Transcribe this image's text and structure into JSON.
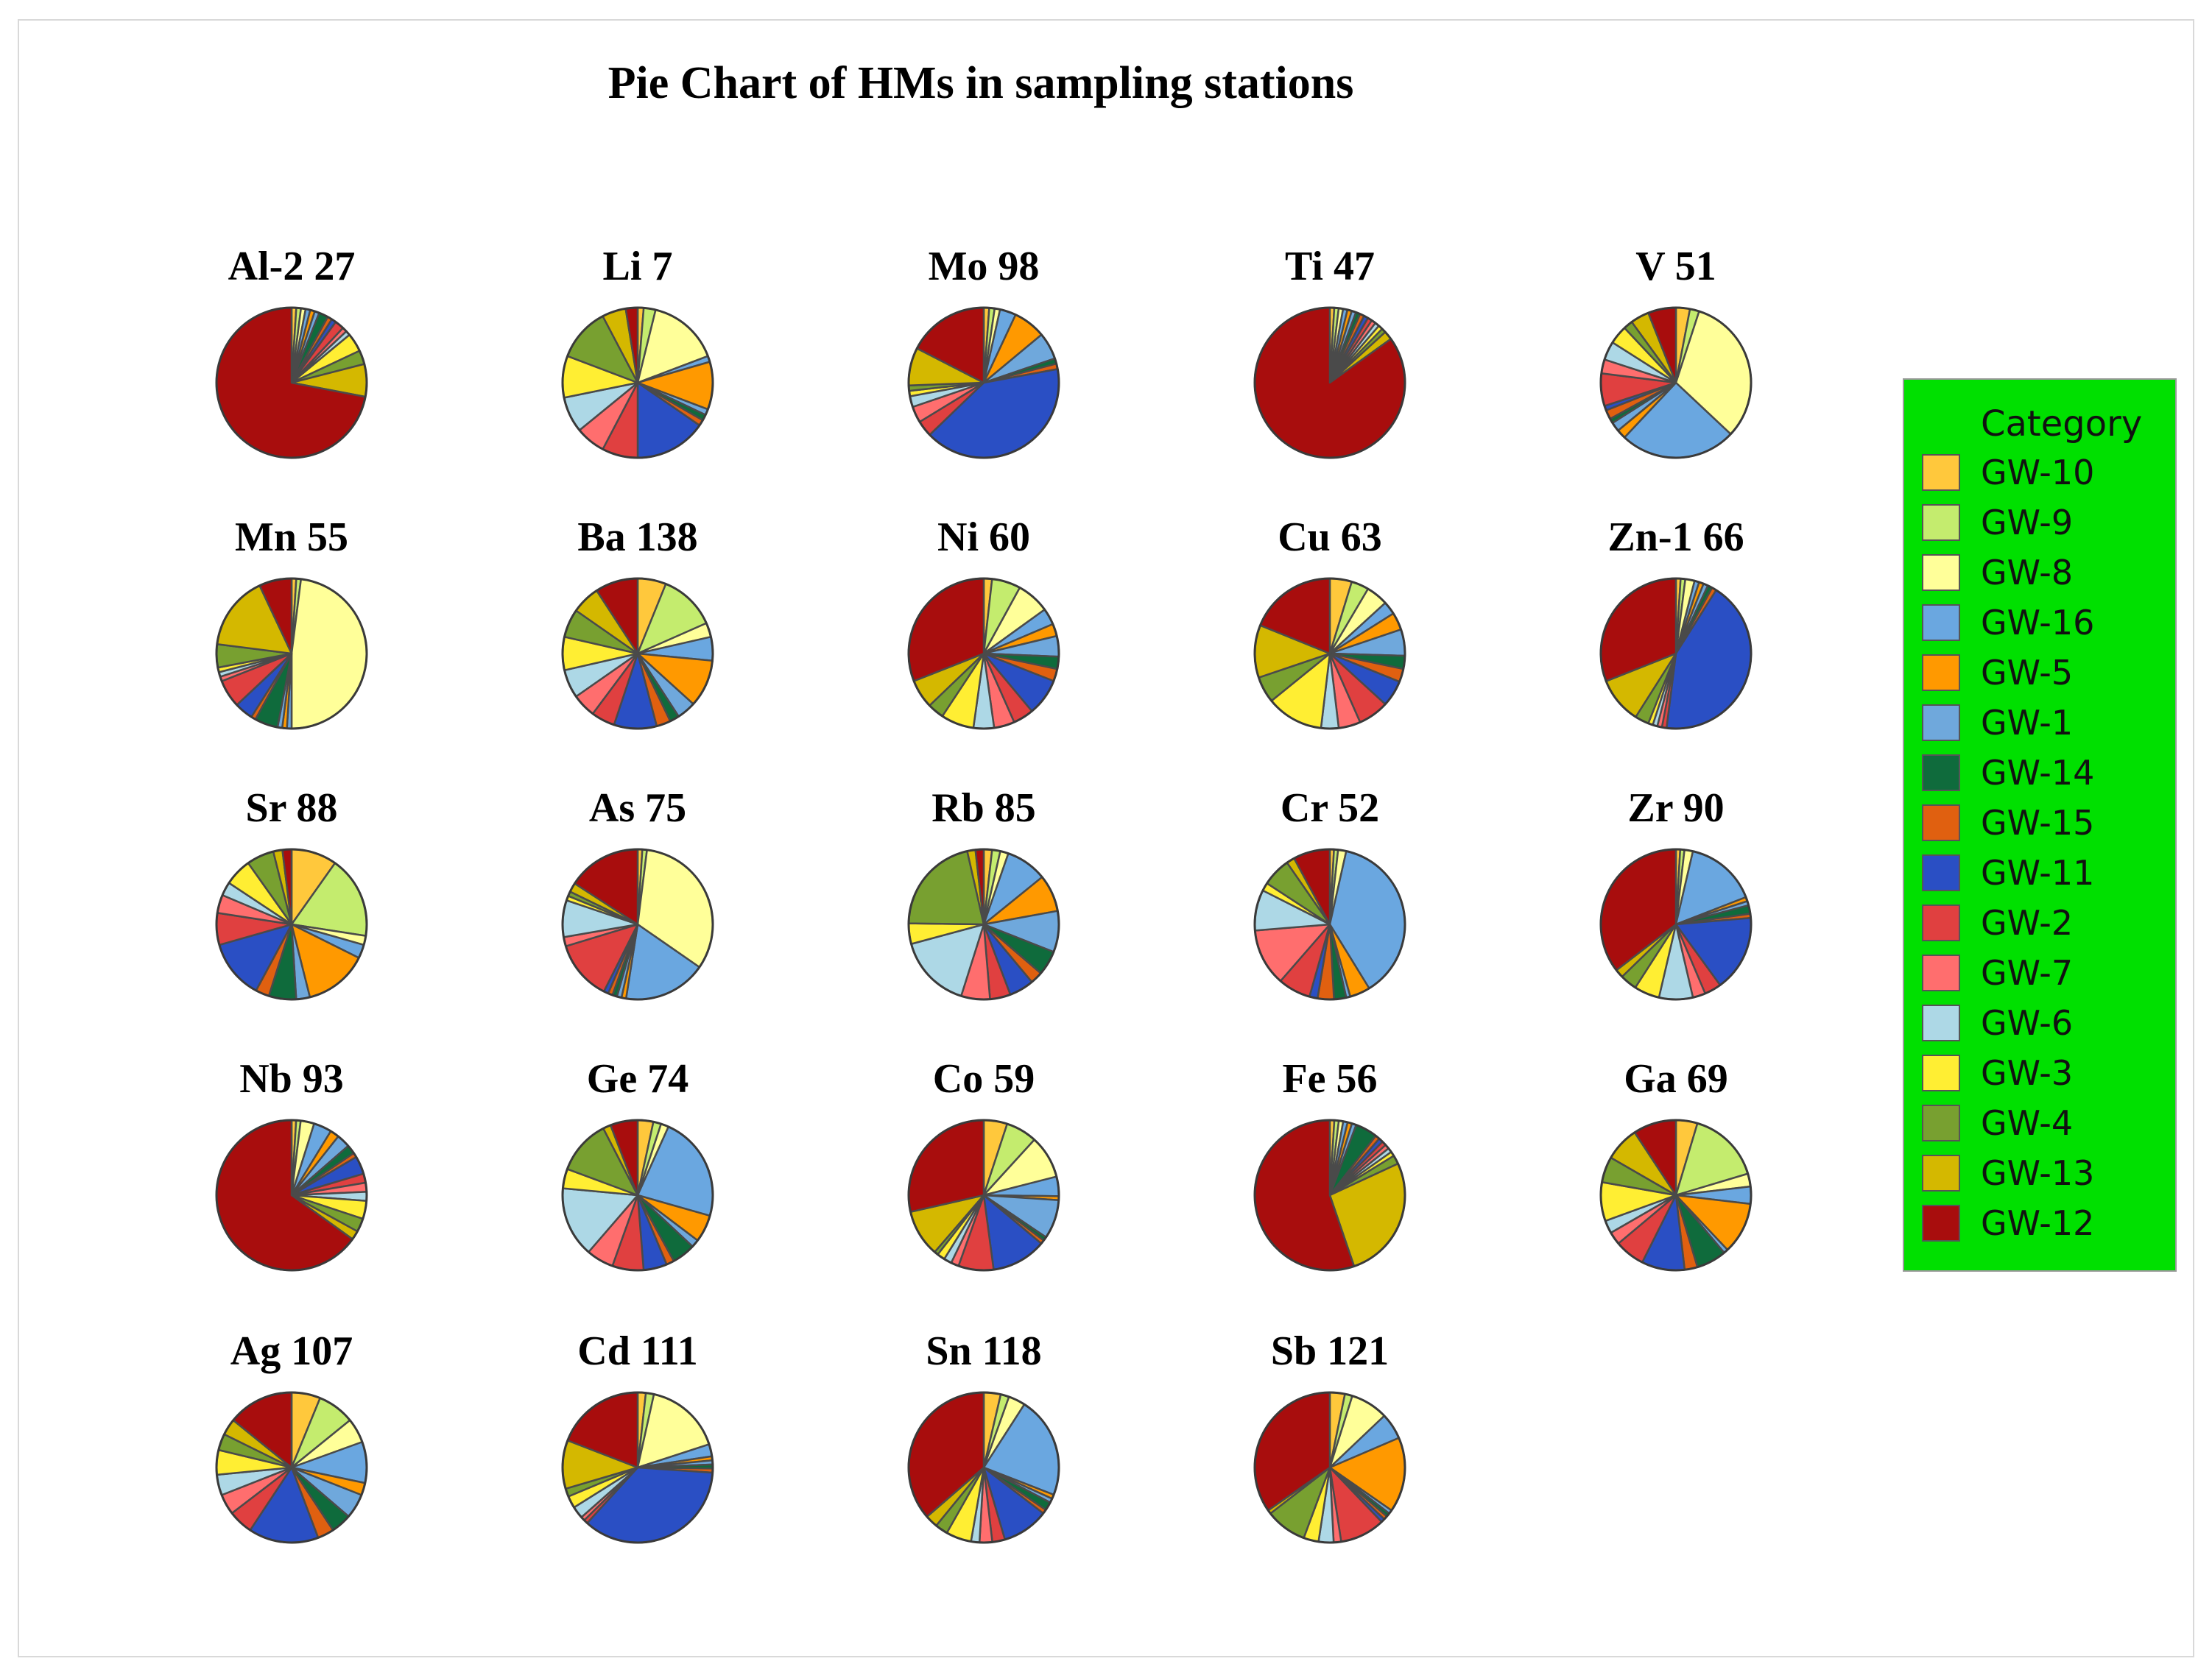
{
  "chart_data": {
    "type": "pie",
    "title": "Pie Chart of HMs in sampling stations",
    "legend_title": "Category",
    "legend_position": "right",
    "categories": [
      "GW-10",
      "GW-9",
      "GW-8",
      "GW-16",
      "GW-5",
      "GW-1",
      "GW-14",
      "GW-15",
      "GW-11",
      "GW-2",
      "GW-7",
      "GW-6",
      "GW-3",
      "GW-4",
      "GW-13",
      "GW-12"
    ],
    "colors": [
      "#ffc83c",
      "#c4ec6e",
      "#ffff99",
      "#6aa7e0",
      "#ff9900",
      "#6fa8dc",
      "#0f6b3c",
      "#e06010",
      "#2a4fc4",
      "#e04040",
      "#ff6e6e",
      "#add8e6",
      "#ffee33",
      "#78a030",
      "#d4b800",
      "#a80d0d"
    ],
    "pies": [
      {
        "title": "Al-2 27",
        "values": [
          1,
          1,
          1,
          1,
          1,
          1,
          2,
          1,
          1,
          2,
          1,
          1,
          4,
          3,
          7,
          72
        ]
      },
      {
        "title": "Li 7",
        "values": [
          1,
          2,
          12,
          1,
          8,
          1,
          1,
          1,
          12,
          6,
          5,
          6,
          7,
          9,
          4,
          2
        ]
      },
      {
        "title": "Mo 98",
        "values": [
          1,
          1,
          1,
          3,
          6,
          5,
          1,
          1,
          35,
          3,
          3,
          2,
          1,
          1,
          7,
          15
        ]
      },
      {
        "title": "Ti 47",
        "values": [
          1,
          1,
          1,
          1,
          1,
          1,
          1,
          1,
          1,
          1,
          1,
          1,
          1,
          1,
          2,
          90
        ]
      },
      {
        "title": "V 51",
        "values": [
          3,
          2,
          32,
          25,
          2,
          2,
          1,
          2,
          1,
          7,
          3,
          4,
          4,
          2,
          4,
          6
        ]
      },
      {
        "title": "Mn 55",
        "values": [
          1,
          1,
          48,
          1,
          1,
          1,
          5,
          1,
          4,
          6,
          1,
          1,
          1,
          5,
          16,
          7
        ]
      },
      {
        "title": "Ba 138",
        "values": [
          6,
          12,
          3,
          5,
          10,
          4,
          2,
          3,
          9,
          5,
          5,
          6,
          7,
          6,
          6,
          9
        ]
      },
      {
        "title": "Ni 60",
        "values": [
          2,
          7,
          8,
          4,
          3,
          5,
          3,
          3,
          9,
          5,
          5,
          5,
          8,
          4,
          7,
          35
        ]
      },
      {
        "title": "Cu 63",
        "values": [
          5,
          4,
          5,
          3,
          4,
          6,
          3,
          3,
          6,
          7,
          5,
          4,
          13,
          6,
          12,
          20
        ]
      },
      {
        "title": "Zn-1 66",
        "values": [
          1,
          1,
          2,
          1,
          1,
          1,
          1,
          1,
          43,
          1,
          1,
          1,
          1,
          3,
          10,
          31
        ]
      },
      {
        "title": "Sr 88",
        "values": [
          10,
          18,
          2,
          3,
          14,
          3,
          6,
          3,
          13,
          7,
          4,
          3,
          6,
          6,
          2,
          2
        ]
      },
      {
        "title": "As 75",
        "values": [
          1,
          1,
          33,
          18,
          1,
          1,
          1,
          1,
          1,
          13,
          2,
          8,
          1,
          1,
          2,
          16
        ]
      },
      {
        "title": "Rb 85",
        "values": [
          2,
          2,
          2,
          10,
          9,
          10,
          6,
          3,
          6,
          5,
          7,
          18,
          5,
          24,
          2,
          2
        ]
      },
      {
        "title": "Cr 52",
        "values": [
          1,
          1,
          2,
          43,
          5,
          1,
          3,
          4,
          2,
          8,
          14,
          10,
          2,
          7,
          2,
          9
        ]
      },
      {
        "title": "Zr 90",
        "values": [
          1,
          1,
          2,
          17,
          1,
          1,
          2,
          1,
          18,
          4,
          3,
          8,
          6,
          4,
          2,
          39
        ]
      },
      {
        "title": "Nb 93",
        "values": [
          1,
          1,
          3,
          4,
          2,
          3,
          2,
          1,
          4,
          2,
          2,
          2,
          4,
          3,
          2,
          67
        ]
      },
      {
        "title": "Ge 74",
        "values": [
          4,
          2,
          2,
          27,
          7,
          2,
          6,
          2,
          6,
          8,
          7,
          18,
          5,
          14,
          2,
          7
        ]
      },
      {
        "title": "Co 59",
        "values": [
          6,
          8,
          11,
          5,
          1,
          10,
          1,
          1,
          14,
          9,
          2,
          2,
          2,
          1,
          12,
          34
        ]
      },
      {
        "title": "Fe 56",
        "values": [
          1,
          1,
          1,
          1,
          1,
          1,
          5,
          1,
          1,
          1,
          1,
          1,
          1,
          2,
          28,
          58
        ]
      },
      {
        "title": "Ga 69",
        "values": [
          5,
          17,
          3,
          4,
          12,
          1,
          7,
          3,
          10,
          7,
          3,
          3,
          9,
          6,
          8,
          10
        ]
      },
      {
        "title": "Ag 107",
        "values": [
          7,
          9,
          6,
          10,
          3,
          6,
          5,
          4,
          17,
          6,
          5,
          5,
          6,
          4,
          4,
          16
        ]
      },
      {
        "title": "Cd 111",
        "values": [
          2,
          2,
          19,
          3,
          1,
          1,
          1,
          1,
          41,
          1,
          1,
          3,
          3,
          2,
          12,
          22
        ]
      },
      {
        "title": "Sn 118",
        "values": [
          4,
          2,
          4,
          24,
          1,
          1,
          2,
          1,
          11,
          3,
          3,
          2,
          6,
          3,
          3,
          40
        ]
      },
      {
        "title": "Sb 121",
        "values": [
          4,
          2,
          10,
          7,
          20,
          1,
          1,
          1,
          1,
          12,
          2,
          4,
          4,
          11,
          1,
          43
        ]
      }
    ]
  }
}
